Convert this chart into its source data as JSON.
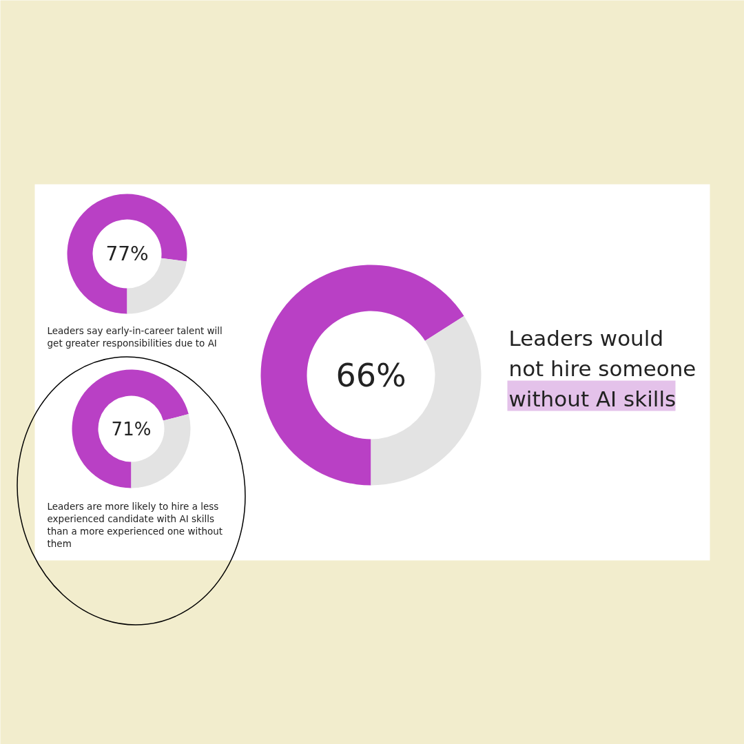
{
  "chart_data": [
    {
      "type": "donut",
      "title": "Leaders say early-in-career talent will get greater responsibilities due to AI",
      "categories": [
        null,
        null
      ],
      "values": [
        77,
        23
      ],
      "colors": [
        "#b940c5",
        "#e3e3e3"
      ],
      "annotations": [
        "77%"
      ]
    },
    {
      "type": "donut",
      "title": "Leaders are more likely to hire a less experienced candidate with AI skills than a more experienced one without them",
      "categories": [
        null,
        null
      ],
      "values": [
        71,
        29
      ],
      "colors": [
        "#b940c5",
        "#e3e3e3"
      ],
      "annotations": [
        "71%"
      ]
    },
    {
      "type": "donut",
      "title": "Leaders would not hire someone without AI skills",
      "categories": [
        null,
        null
      ],
      "values": [
        66,
        34
      ],
      "colors": [
        "#b940c5",
        "#e3e3e3"
      ],
      "annotations": [
        "66%"
      ]
    }
  ]
}
